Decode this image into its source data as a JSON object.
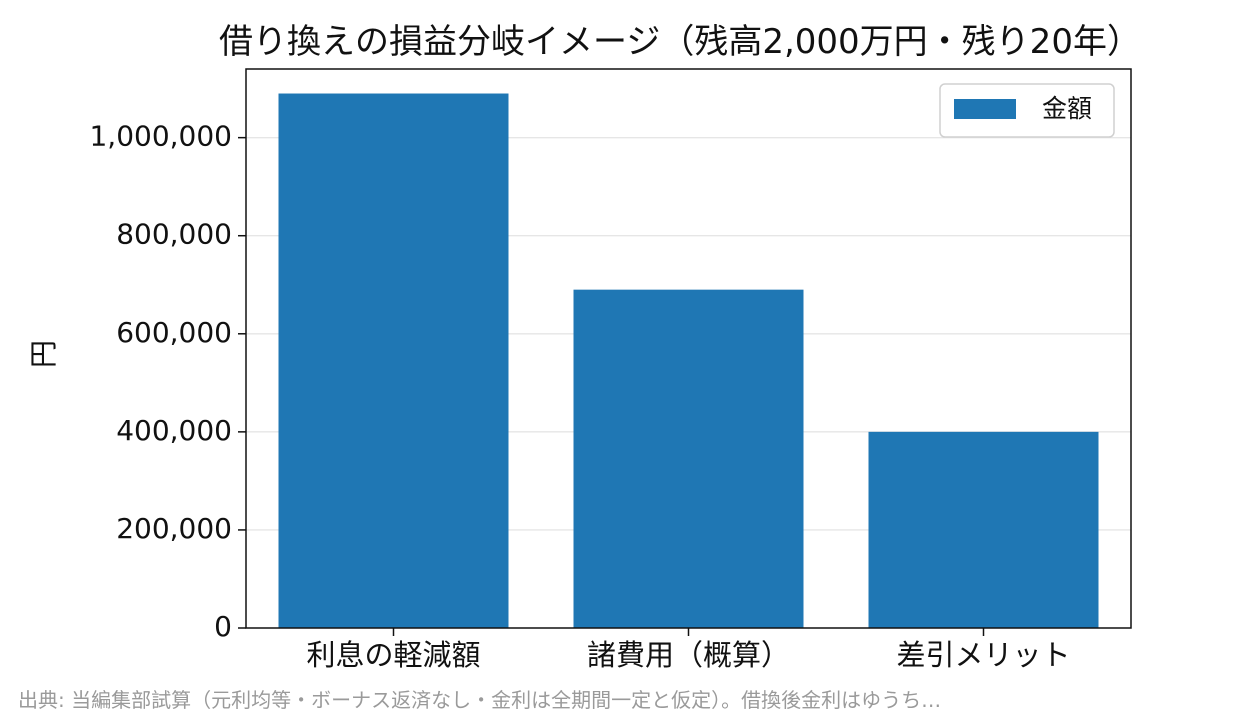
{
  "chart_data": {
    "type": "bar",
    "title": "借り換えの損益分岐イメージ（残高2,000万円・残り20年）",
    "xlabel": "",
    "ylabel": "円",
    "categories": [
      "利息の軽減額",
      "諸費用（概算）",
      "差引メリット"
    ],
    "series": [
      {
        "name": "金額",
        "values": [
          1090000,
          690000,
          400000
        ],
        "color": "#1f77b4"
      }
    ],
    "ylim": [
      0,
      1140000
    ],
    "yticks": [
      0,
      200000,
      400000,
      600000,
      800000,
      1000000
    ],
    "ytick_labels": [
      "0",
      "200,000",
      "400,000",
      "600,000",
      "800,000",
      "1,000,000"
    ],
    "grid": "y",
    "legend": "top-right",
    "source_note": "出典: 当編集部試算（元利均等・ボーナス返済なし・金利は全期間一定と仮定）。借換後金利はゆうち…"
  }
}
